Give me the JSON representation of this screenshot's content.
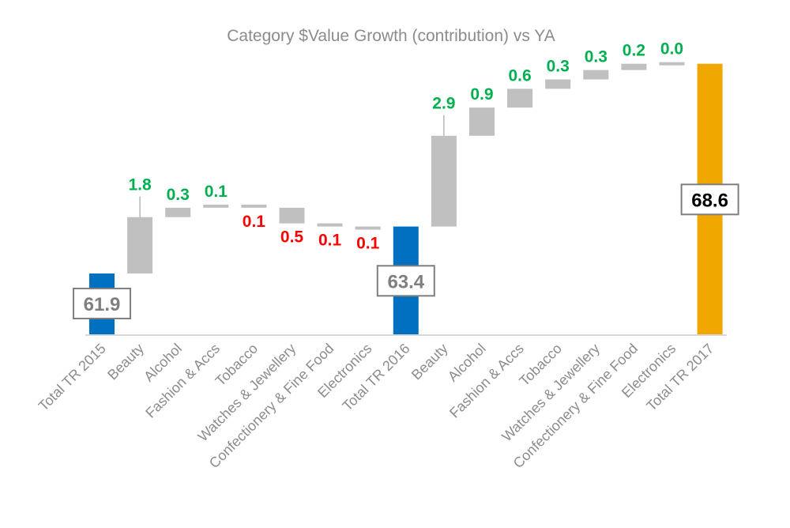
{
  "chart_data": {
    "type": "waterfall",
    "title": "Category $Value Growth (contribution) vs YA",
    "xlabel": "",
    "ylabel": "",
    "ylim": [
      60,
      69
    ],
    "grid": false,
    "legend": "none",
    "categories": [
      "Total TR 2015",
      "Beauty",
      "Alcohol",
      "Fashion & Accs",
      "Tobacco",
      "Watches & Jewellery",
      "Confectionery & Fine Food",
      "Electronics",
      "Total TR 2016",
      "Beauty",
      "Alcohol",
      "Fashion & Accs",
      "Tobacco",
      "Watches & Jewellery",
      "Confectionery & Fine Food",
      "Electronics",
      "Total TR 2017"
    ],
    "kinds": [
      "total",
      "delta",
      "delta",
      "delta",
      "delta",
      "delta",
      "delta",
      "delta",
      "total",
      "delta",
      "delta",
      "delta",
      "delta",
      "delta",
      "delta",
      "delta",
      "total"
    ],
    "values": [
      61.9,
      1.8,
      0.3,
      0.1,
      -0.1,
      -0.5,
      -0.1,
      -0.1,
      63.4,
      2.9,
      0.9,
      0.6,
      0.3,
      0.3,
      0.2,
      0.0,
      68.6
    ],
    "labels": [
      "61.9",
      "1.8",
      "0.3",
      "0.1",
      "0.1",
      "0.5",
      "0.1",
      "0.1",
      "63.4",
      "2.9",
      "0.9",
      "0.6",
      "0.3",
      "0.3",
      "0.2",
      "0.0",
      "68.6"
    ],
    "colors": {
      "total_2015": "#0070c0",
      "total_2016": "#0070c0",
      "total_2017": "#f0a800",
      "delta_bar": "#c0c0c0",
      "positive_label": "#00b050",
      "negative_label": "#ff0000",
      "total_label": "#7f7f7f",
      "final_total_label": "#000000",
      "axis_text": "#8c8c8c"
    }
  }
}
